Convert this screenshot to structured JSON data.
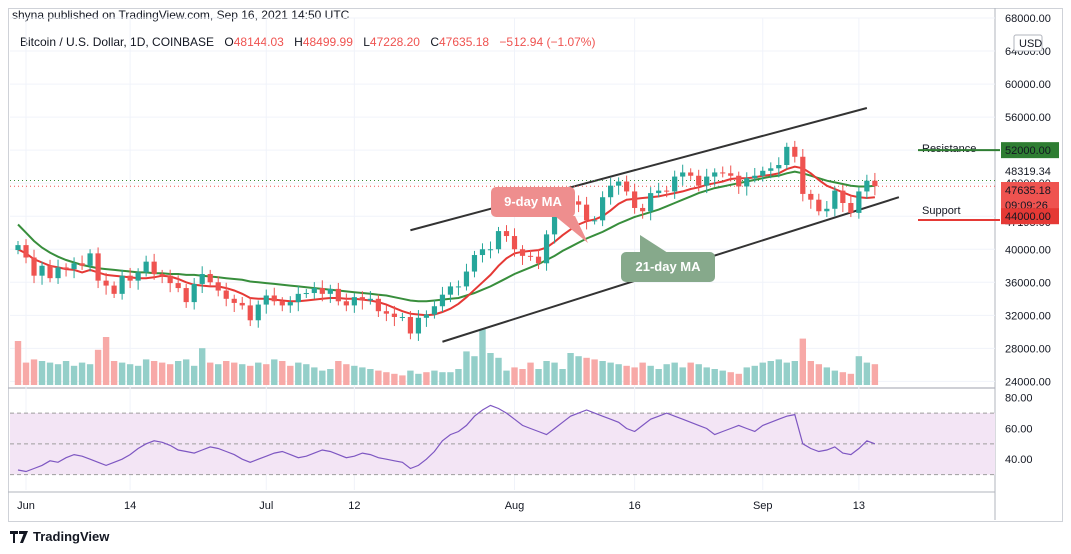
{
  "publisher_line": "shyna published on TradingView.com, Sep 16, 2021 14:50 UTC",
  "legend": {
    "symbol": "Bitcoin / U.S. Dollar, 1D, COINBASE",
    "open_label": "O",
    "open": "48144.03",
    "high_label": "H",
    "high": "48499.99",
    "low_label": "L",
    "low": "47228.20",
    "close_label": "C",
    "close": "47635.18",
    "change": "−512.94 (−1.07%)"
  },
  "currency_badge": "USD",
  "footer_brand": "TradingView",
  "annotations": {
    "ma9": "9-day MA",
    "ma21": "21-day MA",
    "resistance": "Resistance",
    "support": "Support"
  },
  "colors": {
    "up": "#26a69a",
    "down": "#ef5350",
    "ma9": "#e53935",
    "ma21": "#388e3c",
    "rsi_line": "#7e57c2",
    "rsi_band": "#f3e5f5",
    "resistance_tag": "#2e7d32",
    "support_tag": "#e53935",
    "ma9_box": "#ee8e8e",
    "ma21_box": "#86a98b"
  },
  "chart_data": [
    {
      "type": "candlestick",
      "price_ticks": [
        "68000.00",
        "64000.00",
        "60000.00",
        "56000.00",
        "52000.00",
        "48000.00",
        "44000.00",
        "40000.00",
        "36000.00",
        "32000.00",
        "28000.00",
        "24000.00"
      ],
      "price_range": [
        23200,
        68000
      ],
      "x_tick_labels": [
        "Jun",
        "14",
        "Jul",
        "12",
        "Aug",
        "16",
        "Sep",
        "13"
      ],
      "x_tick_days": [
        1,
        14,
        31,
        42,
        62,
        77,
        93,
        105
      ],
      "day_range": [
        -1,
        122
      ],
      "price_tags": {
        "resistance": "52000.00",
        "last_close": "48319.34",
        "current": "47635.18",
        "countdown": "09:09:26",
        "prev": "47195.00",
        "support": "44000.00"
      },
      "closes": [
        40500,
        39000,
        36800,
        38000,
        36500,
        37800,
        37600,
        38300,
        38000,
        39500,
        36200,
        35600,
        34600,
        36800,
        36200,
        37200,
        38500,
        37000,
        36800,
        35900,
        35300,
        33600,
        35800,
        37000,
        36000,
        35000,
        34000,
        33500,
        33200,
        31400,
        33300,
        34400,
        33700,
        33200,
        33600,
        34600,
        34700,
        35300,
        34600,
        35200,
        33700,
        33200,
        34200,
        33800,
        34000,
        32500,
        32200,
        31800,
        31800,
        29800,
        31700,
        32100,
        33100,
        34500,
        35500,
        35500,
        37300,
        39300,
        40000,
        40000,
        42200,
        41600,
        40000,
        39200,
        39100,
        38300,
        41800,
        44400,
        46100,
        45800,
        45400,
        43500,
        43500,
        46300,
        47700,
        48200,
        47000,
        45000,
        44600,
        46800,
        47100,
        47000,
        48800,
        49300,
        48900,
        47700,
        48800,
        49300,
        49200,
        48900,
        47600,
        48600,
        48900,
        49500,
        49800,
        50200,
        52400,
        51200,
        46700,
        46000,
        44600,
        44900,
        47100,
        45600,
        44400,
        47000,
        48300,
        47635
      ],
      "ma9": [
        40000,
        39500,
        38800,
        38400,
        38000,
        37800,
        37600,
        37500,
        37200,
        37500,
        37200,
        36900,
        36800,
        36700,
        36600,
        36500,
        36500,
        36600,
        36800,
        36700,
        36400,
        36000,
        35700,
        35600,
        35500,
        35500,
        35300,
        35000,
        34600,
        34100,
        34000,
        34000,
        33900,
        33800,
        33700,
        33700,
        33800,
        33900,
        34000,
        34100,
        34100,
        34000,
        34000,
        33900,
        33800,
        33600,
        33300,
        32900,
        32500,
        32200,
        32100,
        32000,
        32100,
        32400,
        32800,
        33400,
        34200,
        35100,
        36000,
        36900,
        38000,
        38900,
        39500,
        39700,
        39800,
        39900,
        40200,
        40900,
        41700,
        42400,
        43000,
        43400,
        43600,
        44000,
        44700,
        45500,
        46000,
        46100,
        46200,
        46300,
        46400,
        46600,
        46800,
        47000,
        47300,
        47500,
        47800,
        48000,
        48200,
        48500,
        48600,
        48600,
        48700,
        48900,
        49000,
        49200,
        49700,
        50000,
        49800,
        49200,
        48400,
        47700,
        47300,
        46900,
        46500,
        46300,
        46200,
        46300
      ],
      "ma21": [
        43000,
        42000,
        41000,
        40200,
        39600,
        39100,
        38700,
        38400,
        38100,
        37900,
        37700,
        37600,
        37500,
        37400,
        37300,
        37200,
        37200,
        37100,
        37100,
        37000,
        37000,
        36900,
        36900,
        36800,
        36700,
        36600,
        36500,
        36400,
        36300,
        36100,
        36000,
        35900,
        35800,
        35700,
        35600,
        35500,
        35400,
        35300,
        35200,
        35100,
        35000,
        34900,
        34800,
        34700,
        34600,
        34500,
        34400,
        34200,
        34000,
        33800,
        33700,
        33700,
        33800,
        33900,
        34000,
        34100,
        34400,
        34700,
        35100,
        35500,
        36000,
        36500,
        37000,
        37400,
        37800,
        38200,
        38700,
        39200,
        39800,
        40300,
        40800,
        41300,
        41700,
        42100,
        42600,
        43100,
        43500,
        43900,
        44200,
        44500,
        44800,
        45200,
        45600,
        46000,
        46400,
        46800,
        47100,
        47400,
        47600,
        47800,
        48000,
        48200,
        48400,
        48600,
        48800,
        48900,
        49200,
        49400,
        49200,
        48900,
        48600,
        48300,
        48100,
        47900,
        47700,
        47600,
        47600,
        47700
      ],
      "volume_range": [
        0,
        100
      ],
      "volumes": [
        55,
        28,
        32,
        30,
        28,
        26,
        30,
        24,
        28,
        26,
        44,
        60,
        30,
        28,
        26,
        24,
        32,
        30,
        28,
        26,
        30,
        32,
        24,
        46,
        28,
        26,
        30,
        28,
        26,
        24,
        28,
        26,
        32,
        30,
        24,
        28,
        26,
        22,
        18,
        20,
        30,
        26,
        24,
        22,
        20,
        18,
        16,
        14,
        12,
        18,
        14,
        16,
        18,
        16,
        16,
        20,
        42,
        36,
        70,
        40,
        34,
        18,
        22,
        20,
        28,
        20,
        30,
        28,
        20,
        40,
        36,
        34,
        32,
        30,
        28,
        26,
        24,
        22,
        28,
        24,
        20,
        26,
        28,
        22,
        28,
        26,
        22,
        20,
        18,
        16,
        14,
        22,
        24,
        28,
        30,
        32,
        28,
        30,
        58,
        30,
        26,
        22,
        18,
        16,
        14,
        36,
        28,
        26
      ],
      "volume_colors_down_days": [
        0,
        1,
        2,
        10,
        11,
        12,
        17,
        18,
        19,
        24,
        26,
        27,
        29,
        31,
        33,
        34,
        40,
        41,
        45,
        46,
        47,
        48,
        51,
        62,
        63,
        64,
        71,
        72,
        76,
        77,
        78,
        84,
        89,
        90,
        98,
        99,
        100,
        103,
        104,
        107
      ]
    },
    {
      "type": "line",
      "name": "",
      "y_ticks": [
        "80.00",
        "60.00",
        "40.00"
      ],
      "y_range": [
        20,
        85
      ],
      "band": [
        30,
        70
      ],
      "values": [
        33,
        32,
        34,
        36,
        39,
        38,
        41,
        43,
        42,
        40,
        38,
        36,
        38,
        40,
        43,
        47,
        50,
        52,
        51,
        49,
        46,
        45,
        44,
        46,
        48,
        47,
        45,
        43,
        40,
        38,
        40,
        42,
        44,
        45,
        43,
        41,
        42,
        44,
        46,
        45,
        43,
        41,
        42,
        44,
        43,
        41,
        40,
        39,
        38,
        34,
        36,
        40,
        45,
        52,
        56,
        58,
        62,
        68,
        72,
        75,
        73,
        70,
        66,
        62,
        60,
        58,
        56,
        60,
        64,
        68,
        70,
        72,
        70,
        68,
        66,
        64,
        60,
        58,
        62,
        66,
        68,
        70,
        68,
        66,
        64,
        62,
        60,
        56,
        58,
        60,
        62,
        60,
        58,
        62,
        64,
        66,
        68,
        69,
        50,
        47,
        45,
        46,
        48,
        44,
        43,
        47,
        52,
        50
      ]
    }
  ]
}
